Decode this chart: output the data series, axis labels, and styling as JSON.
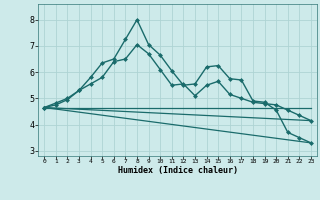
{
  "xlabel": "Humidex (Indice chaleur)",
  "xlim": [
    -0.5,
    23.5
  ],
  "ylim": [
    2.8,
    8.6
  ],
  "yticks": [
    3,
    4,
    5,
    6,
    7,
    8
  ],
  "xticks": [
    0,
    1,
    2,
    3,
    4,
    5,
    6,
    7,
    8,
    9,
    10,
    11,
    12,
    13,
    14,
    15,
    16,
    17,
    18,
    19,
    20,
    21,
    22,
    23
  ],
  "background_color": "#cdeaea",
  "grid_color": "#aed4d4",
  "line_color": "#1a6b6b",
  "series": [
    {
      "x": [
        0,
        1,
        2,
        3,
        4,
        5,
        6,
        7,
        8,
        9,
        10,
        11,
        12,
        13,
        14,
        15,
        16,
        17,
        18,
        19,
        20,
        21,
        22,
        23
      ],
      "y": [
        4.65,
        4.82,
        5.0,
        5.3,
        5.8,
        6.35,
        6.5,
        7.25,
        8.0,
        7.05,
        6.65,
        6.05,
        5.5,
        5.55,
        6.2,
        6.25,
        5.75,
        5.7,
        4.9,
        4.85,
        4.55,
        3.7,
        3.5,
        3.3
      ],
      "marker": "D",
      "markersize": 2.5,
      "linewidth": 1.0,
      "has_marker": true
    },
    {
      "x": [
        0,
        1,
        2,
        3,
        4,
        5,
        6,
        7,
        8,
        9,
        10,
        11,
        12,
        13,
        14,
        15,
        16,
        17,
        18,
        19,
        20,
        21,
        22,
        23
      ],
      "y": [
        4.65,
        4.75,
        4.95,
        5.3,
        5.55,
        5.8,
        6.4,
        6.5,
        7.05,
        6.7,
        6.1,
        5.5,
        5.55,
        5.1,
        5.5,
        5.65,
        5.15,
        5.0,
        4.85,
        4.8,
        4.75,
        4.55,
        4.35,
        4.15
      ],
      "marker": "D",
      "markersize": 2.5,
      "linewidth": 1.0,
      "has_marker": true
    },
    {
      "x": [
        0,
        23
      ],
      "y": [
        4.65,
        4.65
      ],
      "marker": null,
      "markersize": 0,
      "linewidth": 0.9,
      "has_marker": false
    },
    {
      "x": [
        0,
        23
      ],
      "y": [
        4.65,
        3.3
      ],
      "marker": null,
      "markersize": 0,
      "linewidth": 0.9,
      "has_marker": false
    },
    {
      "x": [
        0,
        23
      ],
      "y": [
        4.65,
        4.15
      ],
      "marker": null,
      "markersize": 0,
      "linewidth": 0.9,
      "has_marker": false
    }
  ]
}
